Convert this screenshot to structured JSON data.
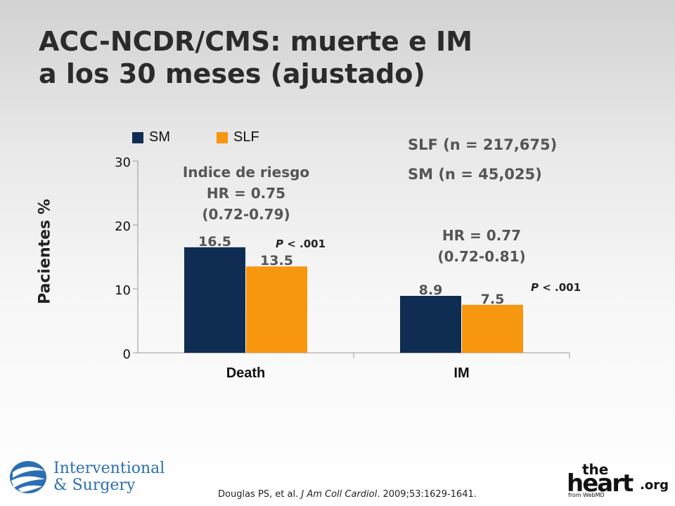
{
  "title": {
    "line1": "ACC-NCDR/CMS: muerte e IM",
    "line2": "a los 30 meses (ajustado)"
  },
  "sample_sizes": {
    "slf": "SLF (n = 217,675)",
    "sm": "SM  (n = 45,025)"
  },
  "groups": [
    {
      "hr_heading": "Indice de riesgo",
      "hr_value": "HR = 0.75",
      "hr_ci": "(0.72-0.79)",
      "p_label": "P",
      "p_value": "< .001"
    },
    {
      "hr_heading": "",
      "hr_value": "HR = 0.77",
      "hr_ci": "(0.72-0.81)",
      "p_label": "P",
      "p_value": "< .001"
    }
  ],
  "citation": {
    "authors": "Douglas PS, et al. ",
    "journal": "J Am Coll Cardiol",
    "rest": ". 2009;53:1629-1641."
  },
  "logos": {
    "left_line1": "Interventional",
    "left_line2": "& Surgery",
    "right_the": "the",
    "right_heart": "heart",
    "right_org": ".org",
    "right_from": "from WebMD"
  },
  "colors": {
    "sm": "#0f2d52",
    "slf": "#f7960f"
  },
  "chart_data": {
    "type": "bar",
    "categories": [
      "Death",
      "IM"
    ],
    "series": [
      {
        "name": "SM",
        "values": [
          16.5,
          8.9
        ],
        "color": "#0f2d52"
      },
      {
        "name": "SLF",
        "values": [
          13.5,
          7.5
        ],
        "color": "#f7960f"
      }
    ],
    "data_labels": [
      [
        "16.5",
        "8.9"
      ],
      [
        "13.5",
        "7.5"
      ]
    ],
    "ylabel": "Pacientes %",
    "ylim": [
      0,
      30
    ],
    "yticks": [
      0,
      10,
      20,
      30
    ],
    "grid": false,
    "legend_position": "top-left"
  }
}
